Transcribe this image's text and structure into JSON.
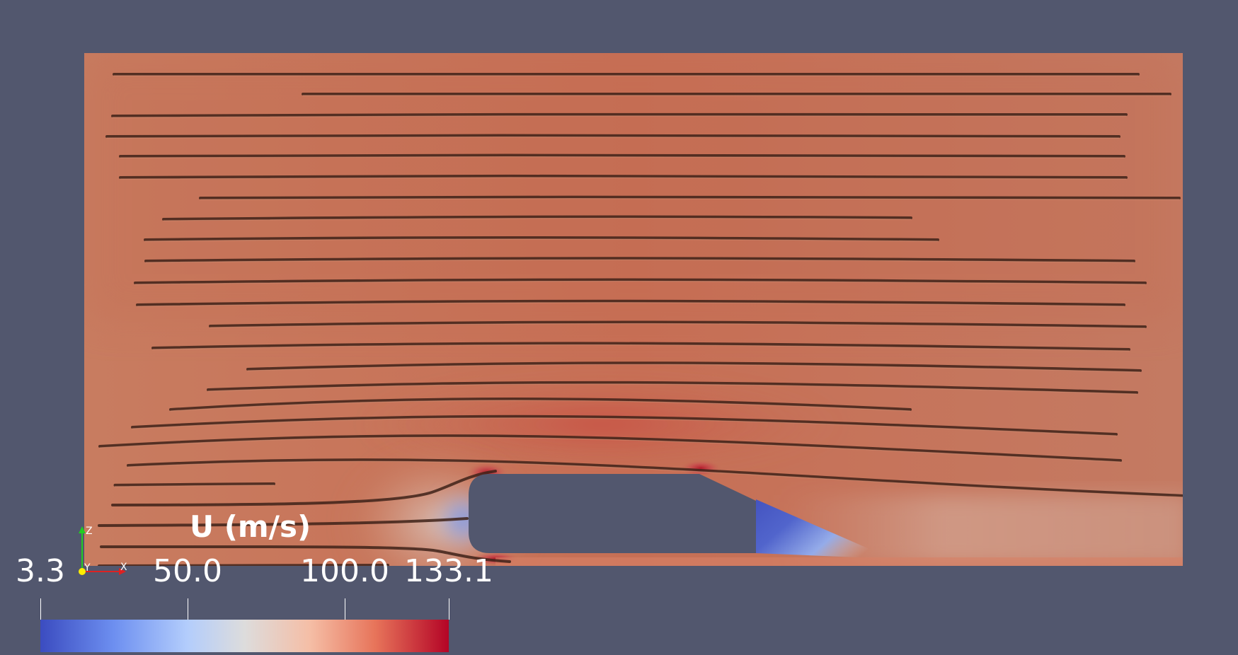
{
  "legend": {
    "title": "U (m/s)",
    "range": [
      3.3,
      133.1
    ],
    "ticks": [
      {
        "value": 3.3,
        "label": "3.3"
      },
      {
        "value": 50.0,
        "label": "50.0"
      },
      {
        "value": 100.0,
        "label": "100.0"
      },
      {
        "value": 133.1,
        "label": "133.1"
      }
    ],
    "colormap": [
      "#3b4cc0",
      "#7396f5",
      "#b0cbff",
      "#dddcdc",
      "#f6bfa6",
      "#ee8468",
      "#b40426"
    ]
  },
  "orientation_axes": {
    "z": "Z",
    "y": "Y",
    "x": "X",
    "colors": {
      "z": "#22cc22",
      "y": "#ffee00",
      "x": "#dd2222"
    }
  },
  "colors": {
    "background": "#52576e",
    "domain_base": "#c6775d",
    "streamline": "#4a2a20"
  }
}
